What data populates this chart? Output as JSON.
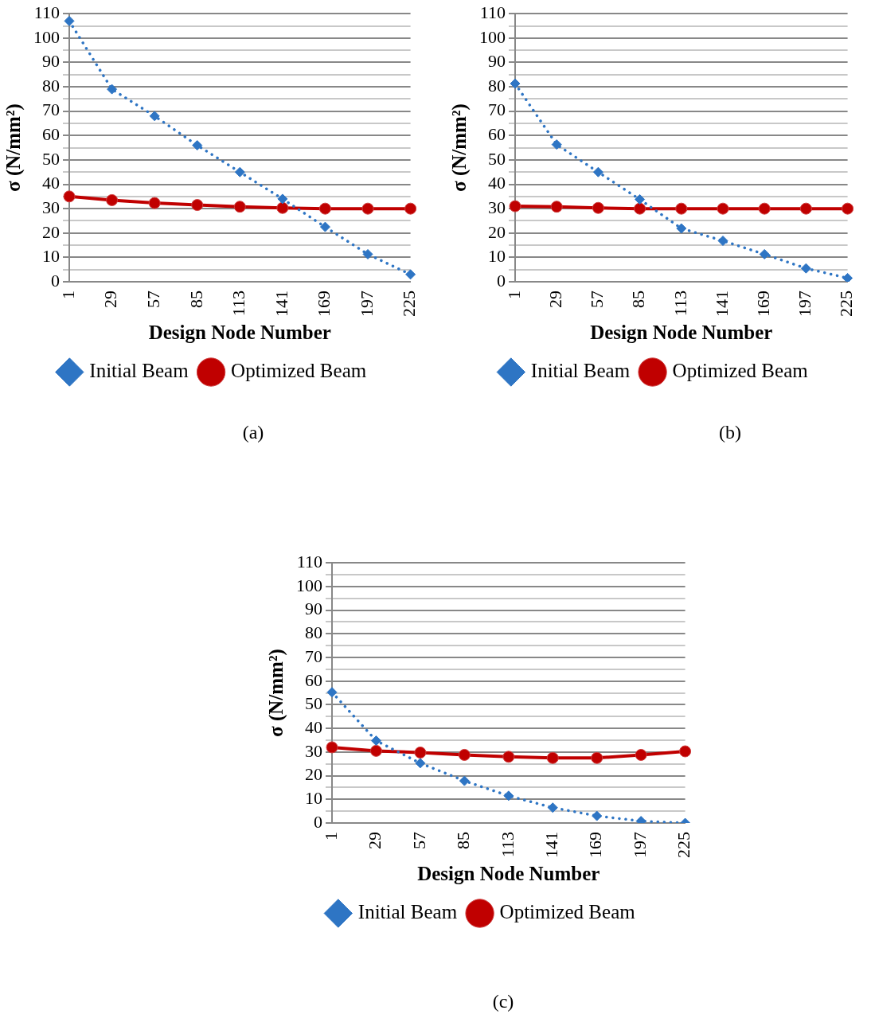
{
  "chart_data": [
    {
      "type": "line",
      "categories": [
        "1",
        "29",
        "57",
        "85",
        "113",
        "141",
        "169",
        "197",
        "225"
      ],
      "xlabel": "Design Node Number",
      "ylabel": "σ (N/mm²)",
      "ylim": [
        0,
        110
      ],
      "yticks": [
        0,
        {
          "value": 5,
          "label": null
        },
        10,
        {
          "value": 15,
          "label": null
        },
        20,
        {
          "value": 25,
          "label": null
        },
        30,
        {
          "value": 35,
          "label": null
        },
        40,
        {
          "value": 45,
          "label": null
        },
        50,
        {
          "value": 55,
          "label": null
        },
        60,
        {
          "value": 65,
          "label": null
        },
        70,
        {
          "value": 75,
          "label": null
        },
        80,
        {
          "value": 85,
          "label": null
        },
        90,
        {
          "value": 95,
          "label": null
        },
        100,
        {
          "value": 105,
          "label": null
        },
        110
      ],
      "grid": "y",
      "legend": "bottom",
      "annotations": [
        "(a)"
      ],
      "series": [
        {
          "name": "Initial Beam",
          "color": "#2e75c4",
          "marker": "diamond",
          "line_style": "dotted",
          "values": [
            107,
            79,
            68,
            56,
            45,
            34,
            22.5,
            11.3,
            3
          ]
        },
        {
          "name": "Optimized Beam",
          "color": "#c00000",
          "marker": "circle",
          "line_style": "solid",
          "values": [
            35,
            33.5,
            32.3,
            31.5,
            30.8,
            30.3,
            30,
            30,
            30
          ]
        }
      ]
    },
    {
      "type": "line",
      "categories": [
        "1",
        "29",
        "57",
        "85",
        "113",
        "141",
        "169",
        "197",
        "225"
      ],
      "xlabel": "Design Node Number",
      "ylabel": "σ (N/mm²)",
      "ylim": [
        0,
        110
      ],
      "yticks": [
        0,
        {
          "value": 5,
          "label": null
        },
        10,
        {
          "value": 15,
          "label": null
        },
        20,
        {
          "value": 25,
          "label": null
        },
        30,
        {
          "value": 35,
          "label": null
        },
        40,
        {
          "value": 45,
          "label": null
        },
        50,
        {
          "value": 55,
          "label": null
        },
        60,
        {
          "value": 65,
          "label": null
        },
        70,
        {
          "value": 75,
          "label": null
        },
        80,
        {
          "value": 85,
          "label": null
        },
        90,
        {
          "value": 95,
          "label": null
        },
        100,
        {
          "value": 105,
          "label": null
        },
        110
      ],
      "grid": "y",
      "legend": "bottom",
      "annotations": [
        "(b)"
      ],
      "series": [
        {
          "name": "Initial Beam",
          "color": "#2e75c4",
          "marker": "diamond",
          "line_style": "dotted",
          "values": [
            81.3,
            56.3,
            45,
            33.8,
            21.9,
            16.8,
            11.3,
            5.5,
            1.5
          ]
        },
        {
          "name": "Optimized Beam",
          "color": "#c00000",
          "marker": "circle",
          "line_style": "solid",
          "values": [
            31,
            30.8,
            30.3,
            30,
            30,
            30,
            30,
            30,
            30
          ]
        }
      ]
    },
    {
      "type": "line",
      "categories": [
        "1",
        "29",
        "57",
        "85",
        "113",
        "141",
        "169",
        "197",
        "225"
      ],
      "xlabel": "Design Node Number",
      "ylabel": "σ (N/mm²)",
      "ylim": [
        0,
        110
      ],
      "yticks": [
        0,
        {
          "value": 5,
          "label": null
        },
        10,
        {
          "value": 15,
          "label": null
        },
        20,
        {
          "value": 25,
          "label": null
        },
        30,
        {
          "value": 35,
          "label": null
        },
        40,
        {
          "value": 45,
          "label": null
        },
        50,
        {
          "value": 55,
          "label": null
        },
        60,
        {
          "value": 65,
          "label": null
        },
        70,
        {
          "value": 75,
          "label": null
        },
        80,
        {
          "value": 85,
          "label": null
        },
        90,
        {
          "value": 95,
          "label": null
        },
        100,
        {
          "value": 105,
          "label": null
        },
        110
      ],
      "grid": "y",
      "legend": "bottom",
      "annotations": [
        "(c)"
      ],
      "series": [
        {
          "name": "Initial Beam",
          "color": "#2e75c4",
          "marker": "diamond",
          "line_style": "dotted",
          "values": [
            55.3,
            34.8,
            25.3,
            17.8,
            11.5,
            6.5,
            3,
            0.8,
            0
          ]
        },
        {
          "name": "Optimized Beam",
          "color": "#c00000",
          "marker": "circle",
          "line_style": "solid",
          "values": [
            32,
            30.5,
            29.8,
            28.8,
            28,
            27.5,
            27.5,
            28.8,
            30.3
          ]
        }
      ]
    }
  ]
}
